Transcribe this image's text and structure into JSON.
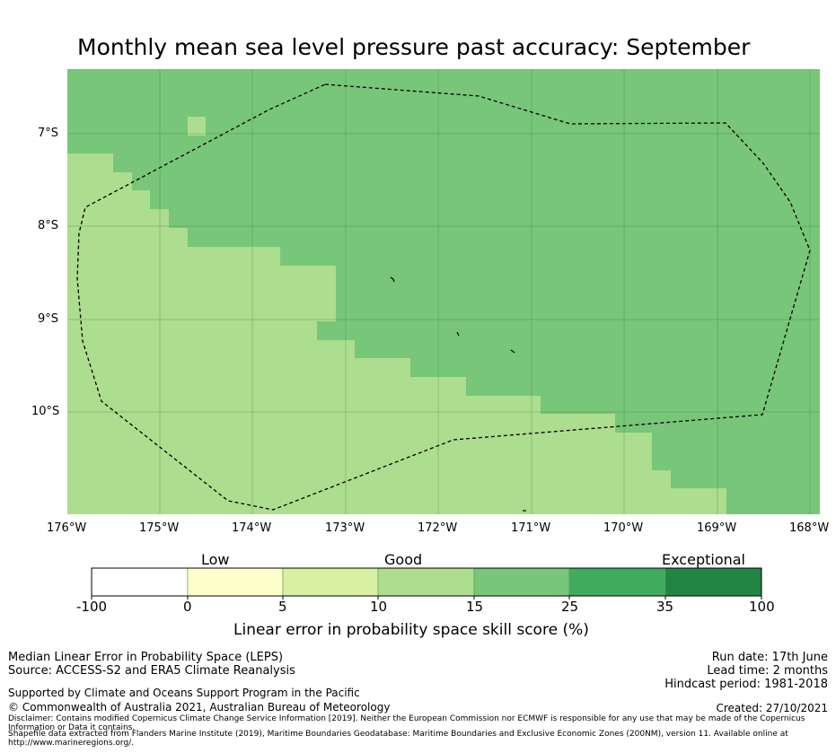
{
  "title": "Monthly mean sea level pressure past accuracy: September",
  "map": {
    "lon_ticks": [
      "176°W",
      "175°W",
      "174°W",
      "173°W",
      "172°W",
      "171°W",
      "170°W",
      "169°W",
      "168°W"
    ],
    "lat_ticks": [
      "7°S",
      "8°S",
      "9°S",
      "10°S"
    ],
    "colors": {
      "good": "#addd8e",
      "good_plus": "#78c679"
    }
  },
  "colorbar": {
    "categories": [
      "Low",
      "Good",
      "Exceptional"
    ],
    "ticks": [
      "-100",
      "0",
      "5",
      "10",
      "15",
      "25",
      "35",
      "100"
    ],
    "colors": [
      "#ffffff",
      "#ffffcc",
      "#d9f0a3",
      "#addd8e",
      "#78c679",
      "#41ab5d",
      "#238443"
    ],
    "title": "Linear error in probability space skill score (%)"
  },
  "footer": {
    "left_line1": "Median Linear Error in Probability Space (LEPS)",
    "left_line2": "Source: ACCESS-S2 and ERA5 Climate Reanalysis",
    "support": "Supported by Climate and Oceans Support Program in the Pacific",
    "copyright": "© Commonwealth of Australia 2021, Australian Bureau of Meteorology",
    "disclaimer": "Disclaimer: Contains modified Copernicus Climate Change Service Information [2019]. Neither the European Commission nor ECMWF is responsible for any use that may be made of the Copernicus Information or Data it contains.",
    "shapefile": "Shapefile data extracted from Flanders Marine Institute (2019), Maritime Boundaries Geodatabase: Maritime Boundaries and Exclusive Economic Zones (200NM), version 11. Available online at http://www.marineregions.org/.",
    "run_date": "Run date: 17th June",
    "lead_time": "Lead time: 2 months",
    "hindcast": "Hindcast period: 1981-2018",
    "created": "Created: 27/10/2021"
  }
}
